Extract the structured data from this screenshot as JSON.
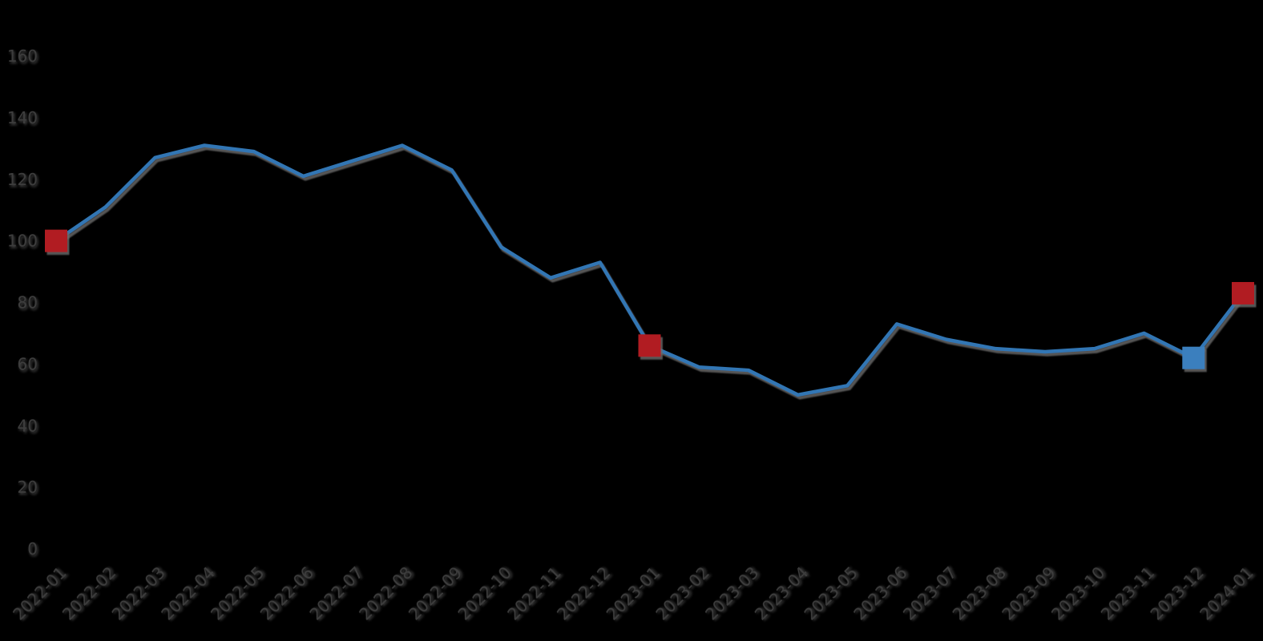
{
  "chart_data": {
    "type": "line",
    "title": "",
    "xlabel": "",
    "ylabel": "",
    "x": [
      "2022-01",
      "2022-02",
      "2022-03",
      "2022-04",
      "2022-05",
      "2022-06",
      "2022-07",
      "2022-08",
      "2022-09",
      "2022-10",
      "2022-11",
      "2022-12",
      "2023-01",
      "2023-02",
      "2023-03",
      "2023-04",
      "2023-05",
      "2023-06",
      "2023-07",
      "2023-08",
      "2023-09",
      "2023-10",
      "2023-11",
      "2023-12",
      "2024-01"
    ],
    "values": [
      100,
      111,
      127,
      131,
      129,
      121,
      126,
      131,
      123,
      98,
      88,
      93,
      66,
      59,
      58,
      50,
      53,
      73,
      68,
      65,
      64,
      65,
      70,
      62,
      83
    ],
    "ylim": [
      0,
      160
    ],
    "yticks": [
      "0",
      "20",
      "40",
      "60",
      "80",
      "100",
      "120",
      "140",
      "160"
    ],
    "grid": false,
    "legend_position": "none",
    "highlight_markers": [
      {
        "x": "2022-01",
        "index": 0,
        "value": 100,
        "color_role": "red"
      },
      {
        "x": "2023-01",
        "index": 12,
        "value": 66,
        "color_role": "red"
      },
      {
        "x": "2023-12",
        "index": 23,
        "value": 62,
        "color_role": "blue"
      },
      {
        "x": "2024-01",
        "index": 24,
        "value": 83,
        "color_role": "red"
      }
    ],
    "colors": {
      "background": "#000000",
      "line": "#3076b4",
      "marker_red": "#b11c21",
      "marker_blue": "#3b7fbe",
      "axis_text": "#3d3d3d",
      "shadow": "#6a6a6a"
    }
  }
}
